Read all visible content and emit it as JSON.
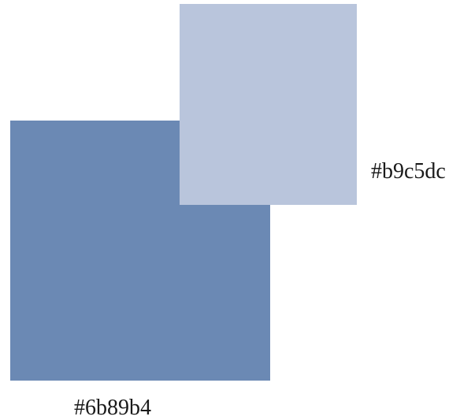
{
  "swatches": [
    {
      "id": "dark",
      "color": "#6b89b4",
      "label": "#6b89b4"
    },
    {
      "id": "light",
      "color": "#b9c5dc",
      "label": "#b9c5dc"
    }
  ]
}
